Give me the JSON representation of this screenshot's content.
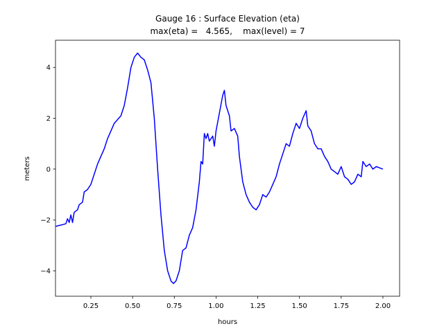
{
  "chart_data": {
    "type": "line",
    "title": [
      "Gauge 16 : Surface Elevation (eta)",
      "max(eta) =   4.565,    max(level) = 7"
    ],
    "x_label": "hours",
    "y_label": "meters",
    "x": [
      0.04,
      0.1,
      0.11,
      0.12,
      0.13,
      0.14,
      0.15,
      0.17,
      0.18,
      0.2,
      0.21,
      0.23,
      0.25,
      0.27,
      0.29,
      0.31,
      0.33,
      0.35,
      0.37,
      0.39,
      0.41,
      0.43,
      0.45,
      0.47,
      0.49,
      0.51,
      0.53,
      0.55,
      0.57,
      0.59,
      0.61,
      0.63,
      0.65,
      0.67,
      0.69,
      0.71,
      0.73,
      0.745,
      0.76,
      0.78,
      0.8,
      0.82,
      0.84,
      0.86,
      0.88,
      0.9,
      0.91,
      0.92,
      0.93,
      0.94,
      0.95,
      0.96,
      0.98,
      0.99,
      1.0,
      1.02,
      1.04,
      1.05,
      1.06,
      1.08,
      1.09,
      1.11,
      1.13,
      1.14,
      1.16,
      1.18,
      1.2,
      1.22,
      1.24,
      1.26,
      1.28,
      1.3,
      1.32,
      1.34,
      1.36,
      1.38,
      1.4,
      1.42,
      1.44,
      1.46,
      1.48,
      1.5,
      1.52,
      1.54,
      1.55,
      1.57,
      1.59,
      1.61,
      1.63,
      1.65,
      1.67,
      1.69,
      1.71,
      1.73,
      1.75,
      1.77,
      1.79,
      1.81,
      1.83,
      1.85,
      1.87,
      1.88,
      1.9,
      1.92,
      1.94,
      1.96,
      1.98,
      2.0
    ],
    "series": [
      {
        "name": "eta",
        "color": "#0000ff",
        "values": [
          -2.25,
          -2.15,
          -1.95,
          -2.1,
          -1.8,
          -2.1,
          -1.7,
          -1.6,
          -1.4,
          -1.3,
          -0.9,
          -0.8,
          -0.6,
          -0.2,
          0.2,
          0.5,
          0.8,
          1.2,
          1.5,
          1.8,
          1.95,
          2.1,
          2.5,
          3.2,
          4.0,
          4.4,
          4.565,
          4.4,
          4.3,
          3.9,
          3.4,
          2.0,
          0.0,
          -1.8,
          -3.2,
          -4.0,
          -4.4,
          -4.5,
          -4.4,
          -4.0,
          -3.2,
          -3.1,
          -2.6,
          -2.3,
          -1.6,
          -0.5,
          0.3,
          0.2,
          1.4,
          1.2,
          1.4,
          1.1,
          1.3,
          0.9,
          1.5,
          2.2,
          2.9,
          3.1,
          2.5,
          2.1,
          1.5,
          1.6,
          1.3,
          0.5,
          -0.5,
          -1.0,
          -1.3,
          -1.5,
          -1.6,
          -1.4,
          -1.0,
          -1.1,
          -0.9,
          -0.6,
          -0.3,
          0.2,
          0.6,
          1.0,
          0.9,
          1.4,
          1.8,
          1.6,
          2.0,
          2.3,
          1.7,
          1.5,
          1.0,
          0.8,
          0.8,
          0.5,
          0.3,
          0.0,
          -0.1,
          -0.2,
          0.1,
          -0.3,
          -0.4,
          -0.6,
          -0.5,
          -0.2,
          -0.3,
          0.3,
          0.1,
          0.2,
          0.0,
          0.1,
          0.05,
          0.0
        ]
      }
    ],
    "xlim": [
      0.038,
      2.1
    ],
    "ylim": [
      -5.0,
      5.07
    ],
    "xticks": [
      0.25,
      {
        "value": 0.5,
        "label": "0.50"
      },
      0.75,
      {
        "value": 1.0,
        "label": "1.00"
      },
      1.25,
      {
        "value": 1.5,
        "label": "1.50"
      },
      1.75,
      {
        "value": 2.0,
        "label": "2.00"
      }
    ],
    "yticks": [
      {
        "value": -4,
        "label": "−4"
      },
      {
        "value": -2,
        "label": "−2"
      },
      0,
      2,
      4
    ]
  }
}
